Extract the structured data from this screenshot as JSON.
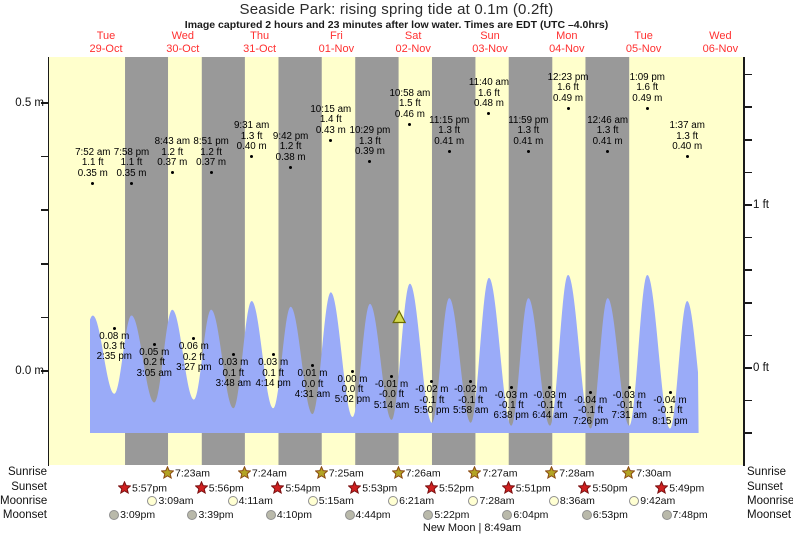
{
  "title": "Seaside Park: rising  spring tide at 0.1m (0.2ft)",
  "subtitle": "Image captured 2 hours and 23 minutes after low water. Times are EDT (UTC –4.0hrs)",
  "day_labels": [
    {
      "dow": "Tue",
      "date": "29-Oct"
    },
    {
      "dow": "Wed",
      "date": "30-Oct"
    },
    {
      "dow": "Thu",
      "date": "31-Oct"
    },
    {
      "dow": "Fri",
      "date": "01-Nov"
    },
    {
      "dow": "Sat",
      "date": "02-Nov"
    },
    {
      "dow": "Sun",
      "date": "03-Nov"
    },
    {
      "dow": "Mon",
      "date": "04-Nov"
    },
    {
      "dow": "Tue",
      "date": "05-Nov"
    },
    {
      "dow": "Wed",
      "date": "06-Nov"
    }
  ],
  "axes": {
    "left": {
      "unit": "m",
      "labels": [
        {
          "text": "0.5 m",
          "value": 0.5
        },
        {
          "text": "0.0 m",
          "value": 0.0
        }
      ],
      "tick_values": [
        0.0,
        0.1,
        0.2,
        0.3,
        0.4,
        0.5
      ]
    },
    "right": {
      "unit": "ft",
      "labels": [
        {
          "text": "1 ft",
          "value": 1.0
        },
        {
          "text": "0 ft",
          "value": 0.0
        }
      ],
      "tick_values": [
        -0.4,
        -0.2,
        0.0,
        0.2,
        0.4,
        0.6,
        0.8,
        1.0,
        1.2,
        1.4,
        1.6,
        1.8
      ]
    }
  },
  "chart_data": {
    "type": "area",
    "series_name": "tide height",
    "units": {
      "primary": "m",
      "secondary": "ft"
    },
    "left_axis_range_m": [
      0.0,
      0.5
    ],
    "right_axis_range_ft": [
      0.0,
      1.8
    ],
    "grid": false,
    "legend": "none",
    "day0": "Tue 29-Oct",
    "tide_events": [
      {
        "day": 0,
        "time": "7:52 am",
        "ft": "1.1 ft",
        "m": "0.35 m",
        "kind": "high"
      },
      {
        "day": 0,
        "time": "2:35 pm",
        "ft": "0.3 ft",
        "m": "0.08 m",
        "kind": "low"
      },
      {
        "day": 0,
        "time": "7:58 pm",
        "ft": "1.1 ft",
        "m": "0.35 m",
        "kind": "high"
      },
      {
        "day": 1,
        "time": "3:05 am",
        "ft": "0.2 ft",
        "m": "0.05 m",
        "kind": "low"
      },
      {
        "day": 1,
        "time": "8:43 am",
        "ft": "1.2 ft",
        "m": "0.37 m",
        "kind": "high"
      },
      {
        "day": 1,
        "time": "3:27 pm",
        "ft": "0.2 ft",
        "m": "0.06 m",
        "kind": "low"
      },
      {
        "day": 1,
        "time": "8:51 pm",
        "ft": "1.2 ft",
        "m": "0.37 m",
        "kind": "high"
      },
      {
        "day": 2,
        "time": "3:48 am",
        "ft": "0.1 ft",
        "m": "0.03 m",
        "kind": "low"
      },
      {
        "day": 2,
        "time": "9:31 am",
        "ft": "1.3 ft",
        "m": "0.40 m",
        "kind": "high"
      },
      {
        "day": 2,
        "time": "4:14 pm",
        "ft": "0.1 ft",
        "m": "0.03 m",
        "kind": "low"
      },
      {
        "day": 2,
        "time": "9:42 pm",
        "ft": "1.2 ft",
        "m": "0.38 m",
        "kind": "high"
      },
      {
        "day": 3,
        "time": "4:31 am",
        "ft": "0.0 ft",
        "m": "0.01 m",
        "kind": "low"
      },
      {
        "day": 3,
        "time": "10:15 am",
        "ft": "1.4 ft",
        "m": "0.43 m",
        "kind": "high"
      },
      {
        "day": 3,
        "time": "5:02 pm",
        "ft": "0.0 ft",
        "m": "0.00 m",
        "kind": "low"
      },
      {
        "day": 3,
        "time": "10:29 pm",
        "ft": "1.3 ft",
        "m": "0.39 m",
        "kind": "high"
      },
      {
        "day": 4,
        "time": "5:14 am",
        "ft": "-0.0 ft",
        "m": "-0.01 m",
        "kind": "low"
      },
      {
        "day": 4,
        "time": "10:58 am",
        "ft": "1.5 ft",
        "m": "0.46 m",
        "kind": "high"
      },
      {
        "day": 4,
        "time": "5:50 pm",
        "ft": "-0.1 ft",
        "m": "-0.02 m",
        "kind": "low"
      },
      {
        "day": 4,
        "time": "11:15 pm",
        "ft": "1.3 ft",
        "m": "0.41 m",
        "kind": "high"
      },
      {
        "day": 5,
        "time": "5:58 am",
        "ft": "-0.1 ft",
        "m": "-0.02 m",
        "kind": "low"
      },
      {
        "day": 5,
        "time": "11:40 am",
        "ft": "1.6 ft",
        "m": "0.48 m",
        "kind": "high"
      },
      {
        "day": 5,
        "time": "6:38 pm",
        "ft": "-0.1 ft",
        "m": "-0.03 m",
        "kind": "low"
      },
      {
        "day": 5,
        "time": "11:59 pm",
        "ft": "1.3 ft",
        "m": "0.41 m",
        "kind": "high"
      },
      {
        "day": 6,
        "time": "6:44 am",
        "ft": "-0.1 ft",
        "m": "-0.03 m",
        "kind": "low"
      },
      {
        "day": 6,
        "time": "12:23 pm",
        "ft": "1.6 ft",
        "m": "0.49 m",
        "kind": "high"
      },
      {
        "day": 6,
        "time": "7:26 pm",
        "ft": "-0.1 ft",
        "m": "-0.04 m",
        "kind": "low"
      },
      {
        "day": 7,
        "time": "12:46 am",
        "ft": "1.3 ft",
        "m": "0.41 m",
        "kind": "high"
      },
      {
        "day": 7,
        "time": "7:31 am",
        "ft": "-0.1 ft",
        "m": "-0.03 m",
        "kind": "low"
      },
      {
        "day": 7,
        "time": "1:09 pm",
        "ft": "1.6 ft",
        "m": "0.49 m",
        "kind": "high"
      },
      {
        "day": 7,
        "time": "8:15 pm",
        "ft": "-0.1 ft",
        "m": "-0.04 m",
        "kind": "low"
      },
      {
        "day": 8,
        "time": "1:37 am",
        "ft": "1.3 ft",
        "m": "0.40 m",
        "kind": "high"
      }
    ],
    "capture_marker": {
      "symbol": "triangle",
      "day": 4,
      "time": "7:37 am"
    }
  },
  "almanac": {
    "rows": [
      {
        "label": "Sunrise",
        "icon": "sunrise-star",
        "events": [
          {
            "day": 1,
            "time": "7:23am"
          },
          {
            "day": 2,
            "time": "7:24am"
          },
          {
            "day": 3,
            "time": "7:25am"
          },
          {
            "day": 4,
            "time": "7:26am"
          },
          {
            "day": 5,
            "time": "7:27am"
          },
          {
            "day": 6,
            "time": "7:28am"
          },
          {
            "day": 7,
            "time": "7:30am"
          }
        ]
      },
      {
        "label": "Sunset",
        "icon": "sunset-star",
        "events": [
          {
            "day": 0,
            "time": "5:57pm"
          },
          {
            "day": 1,
            "time": "5:56pm"
          },
          {
            "day": 2,
            "time": "5:54pm"
          },
          {
            "day": 3,
            "time": "5:53pm"
          },
          {
            "day": 4,
            "time": "5:52pm"
          },
          {
            "day": 5,
            "time": "5:51pm"
          },
          {
            "day": 6,
            "time": "5:50pm"
          },
          {
            "day": 7,
            "time": "5:49pm"
          }
        ]
      },
      {
        "label": "Moonrise",
        "icon": "moonrise-circle",
        "events": [
          {
            "day": 1,
            "time": "3:09am"
          },
          {
            "day": 2,
            "time": "4:11am"
          },
          {
            "day": 3,
            "time": "5:15am"
          },
          {
            "day": 4,
            "time": "6:21am"
          },
          {
            "day": 5,
            "time": "7:28am"
          },
          {
            "day": 6,
            "time": "8:36am"
          },
          {
            "day": 7,
            "time": "9:42am"
          }
        ]
      },
      {
        "label": "Moonset",
        "icon": "moonset-circle",
        "events": [
          {
            "day": 0,
            "time": "3:09pm"
          },
          {
            "day": 1,
            "time": "3:39pm"
          },
          {
            "day": 2,
            "time": "4:10pm"
          },
          {
            "day": 3,
            "time": "4:44pm"
          },
          {
            "day": 4,
            "time": "5:22pm"
          },
          {
            "day": 5,
            "time": "6:04pm"
          },
          {
            "day": 6,
            "time": "6:53pm"
          },
          {
            "day": 7,
            "time": "7:48pm"
          }
        ]
      }
    ],
    "moon_phase": "New Moon | 8:49am"
  },
  "colors": {
    "day_band": "#ffffcc",
    "night_band": "#999999",
    "tide_fill": "#9aabf8",
    "day_label_red": "#ff3030",
    "sunrise_star": "#b3a424",
    "sunrise_star_edge": "#8a4a12",
    "sunset_star": "#cf2020",
    "sunset_star_edge": "#7a1010",
    "moonrise_fill": "#ffffd2",
    "moonset_fill": "#b9b9aa",
    "marker_fill": "#d4d94f",
    "marker_edge": "#6b6b00"
  }
}
